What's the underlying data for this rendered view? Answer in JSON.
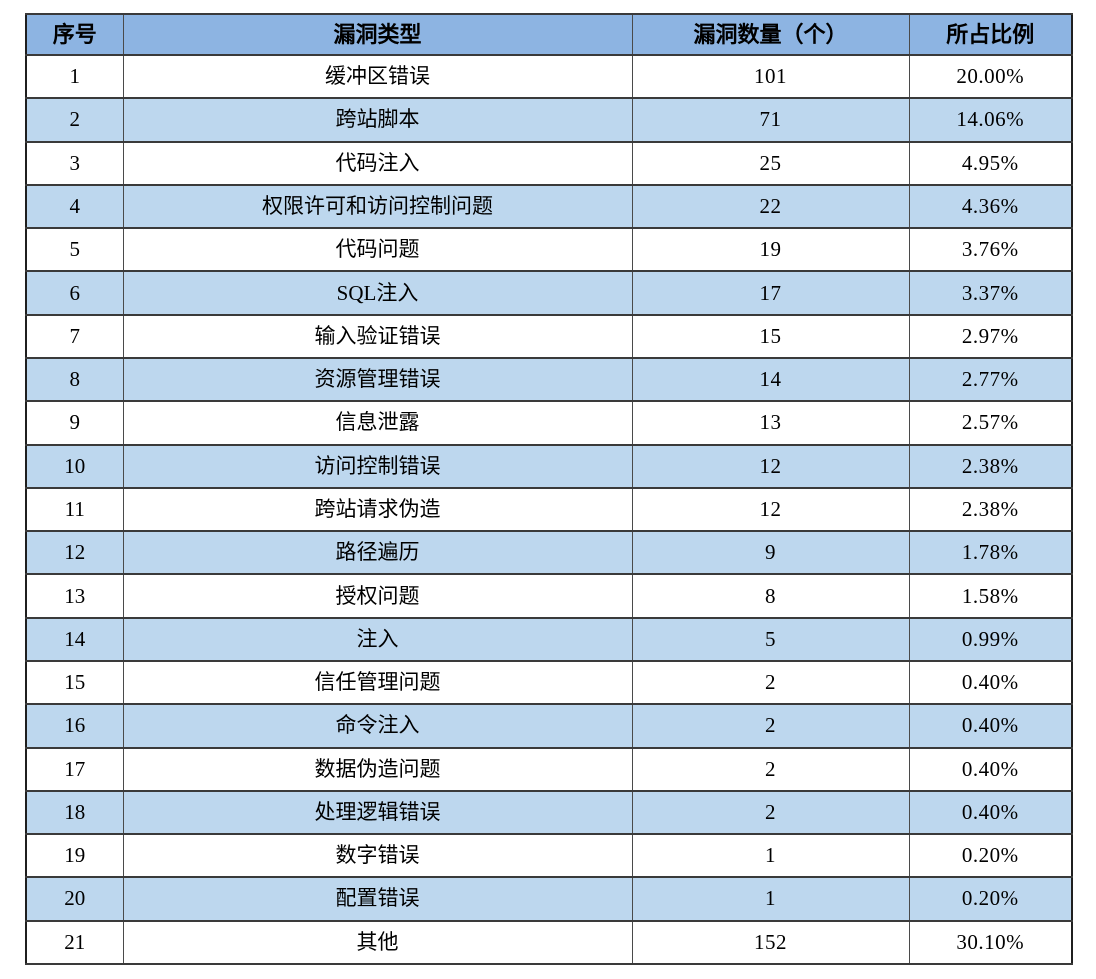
{
  "colors": {
    "header_bg": "#8DB4E2",
    "stripe_bg": "#BDD7EE",
    "row_bg": "#FFFFFF",
    "border": "#3A3A3A",
    "text": "#000000"
  },
  "chart_data": {
    "type": "table",
    "title": "",
    "columns": [
      "序号",
      "漏洞类型",
      "漏洞数量（个）",
      "所占比例"
    ],
    "rows": [
      {
        "no": "1",
        "type": "缓冲区错误",
        "count": 101,
        "ratio": "20.00%"
      },
      {
        "no": "2",
        "type": "跨站脚本",
        "count": 71,
        "ratio": "14.06%"
      },
      {
        "no": "3",
        "type": "代码注入",
        "count": 25,
        "ratio": "4.95%"
      },
      {
        "no": "4",
        "type": "权限许可和访问控制问题",
        "count": 22,
        "ratio": "4.36%"
      },
      {
        "no": "5",
        "type": "代码问题",
        "count": 19,
        "ratio": "3.76%"
      },
      {
        "no": "6",
        "type": "SQL注入",
        "count": 17,
        "ratio": "3.37%"
      },
      {
        "no": "7",
        "type": "输入验证错误",
        "count": 15,
        "ratio": "2.97%"
      },
      {
        "no": "8",
        "type": "资源管理错误",
        "count": 14,
        "ratio": "2.77%"
      },
      {
        "no": "9",
        "type": "信息泄露",
        "count": 13,
        "ratio": "2.57%"
      },
      {
        "no": "10",
        "type": "访问控制错误",
        "count": 12,
        "ratio": "2.38%"
      },
      {
        "no": "11",
        "type": "跨站请求伪造",
        "count": 12,
        "ratio": "2.38%"
      },
      {
        "no": "12",
        "type": "路径遍历",
        "count": 9,
        "ratio": "1.78%"
      },
      {
        "no": "13",
        "type": "授权问题",
        "count": 8,
        "ratio": "1.58%"
      },
      {
        "no": "14",
        "type": "注入",
        "count": 5,
        "ratio": "0.99%"
      },
      {
        "no": "15",
        "type": "信任管理问题",
        "count": 2,
        "ratio": "0.40%"
      },
      {
        "no": "16",
        "type": "命令注入",
        "count": 2,
        "ratio": "0.40%"
      },
      {
        "no": "17",
        "type": "数据伪造问题",
        "count": 2,
        "ratio": "0.40%"
      },
      {
        "no": "18",
        "type": "处理逻辑错误",
        "count": 2,
        "ratio": "0.40%"
      },
      {
        "no": "19",
        "type": "数字错误",
        "count": 1,
        "ratio": "0.20%"
      },
      {
        "no": "20",
        "type": "配置错误",
        "count": 1,
        "ratio": "0.20%"
      },
      {
        "no": "21",
        "type": "其他",
        "count": 152,
        "ratio": "30.10%"
      }
    ]
  }
}
